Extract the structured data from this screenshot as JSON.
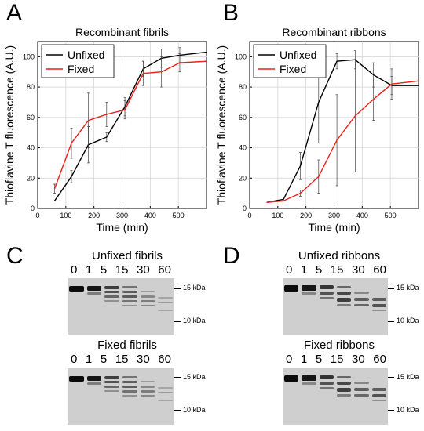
{
  "panels": {
    "A": "A",
    "B": "B",
    "C": "C",
    "D": "D"
  },
  "chart_data": [
    {
      "type": "line",
      "title": "Recombinant fibrils",
      "xlabel": "Time (min)",
      "ylabel": "Thioflavine T fluorescence (A.U.)",
      "xlim": [
        0,
        600
      ],
      "ylim": [
        0,
        110
      ],
      "xticks": [
        0,
        100,
        200,
        300,
        400,
        500
      ],
      "yticks": [
        0,
        20,
        40,
        60,
        80,
        100
      ],
      "grid": true,
      "legend": "top-left",
      "series": [
        {
          "name": "Unfixed",
          "color": "#000000",
          "x": [
            60,
            120,
            180,
            245,
            310,
            375,
            440,
            505,
            600
          ],
          "y": [
            5,
            21,
            42,
            47,
            67,
            92,
            99,
            101,
            103
          ],
          "err": [
            0,
            4,
            12,
            3,
            6,
            5,
            6,
            5,
            0
          ]
        },
        {
          "name": "Fixed",
          "color": "#e8201c",
          "x": [
            60,
            120,
            180,
            245,
            310,
            375,
            440,
            505,
            600
          ],
          "y": [
            13,
            43,
            58,
            62,
            65,
            89,
            90,
            96,
            97
          ],
          "err": [
            3,
            10,
            18,
            8,
            6,
            8,
            10,
            6,
            0
          ]
        }
      ]
    },
    {
      "type": "line",
      "title": "Recombinant ribbons",
      "xlabel": "Time (min)",
      "ylabel": "Thioflavine T fluorescence (A.U.)",
      "xlim": [
        0,
        600
      ],
      "ylim": [
        0,
        110
      ],
      "xticks": [
        0,
        100,
        200,
        300,
        400,
        500
      ],
      "yticks": [
        0,
        20,
        40,
        60,
        80,
        100
      ],
      "grid": true,
      "legend": "top-left",
      "series": [
        {
          "name": "Unfixed",
          "color": "#000000",
          "x": [
            60,
            120,
            180,
            245,
            310,
            375,
            440,
            505,
            600
          ],
          "y": [
            4,
            6,
            28,
            70,
            97,
            98,
            88,
            81,
            81
          ],
          "err": [
            0,
            0,
            9,
            27,
            5,
            6,
            8,
            6,
            0
          ]
        },
        {
          "name": "Fixed",
          "color": "#e8201c",
          "x": [
            60,
            120,
            180,
            245,
            310,
            375,
            440,
            505,
            600
          ],
          "y": [
            4,
            5,
            10,
            21,
            45,
            61,
            72,
            82,
            84
          ],
          "err": [
            0,
            0,
            2,
            11,
            30,
            37,
            14,
            10,
            0
          ]
        }
      ]
    }
  ],
  "gels": {
    "lanes": [
      "0",
      "1",
      "5",
      "15",
      "30",
      "60"
    ],
    "marker_high": "15 kDa",
    "marker_low": "10 kDa",
    "unfixed_fibrils": "Unfixed fibrils",
    "fixed_fibrils": "Fixed fibrils",
    "unfixed_ribbons": "Unfixed ribbons",
    "fixed_ribbons": "Fixed ribbons"
  }
}
